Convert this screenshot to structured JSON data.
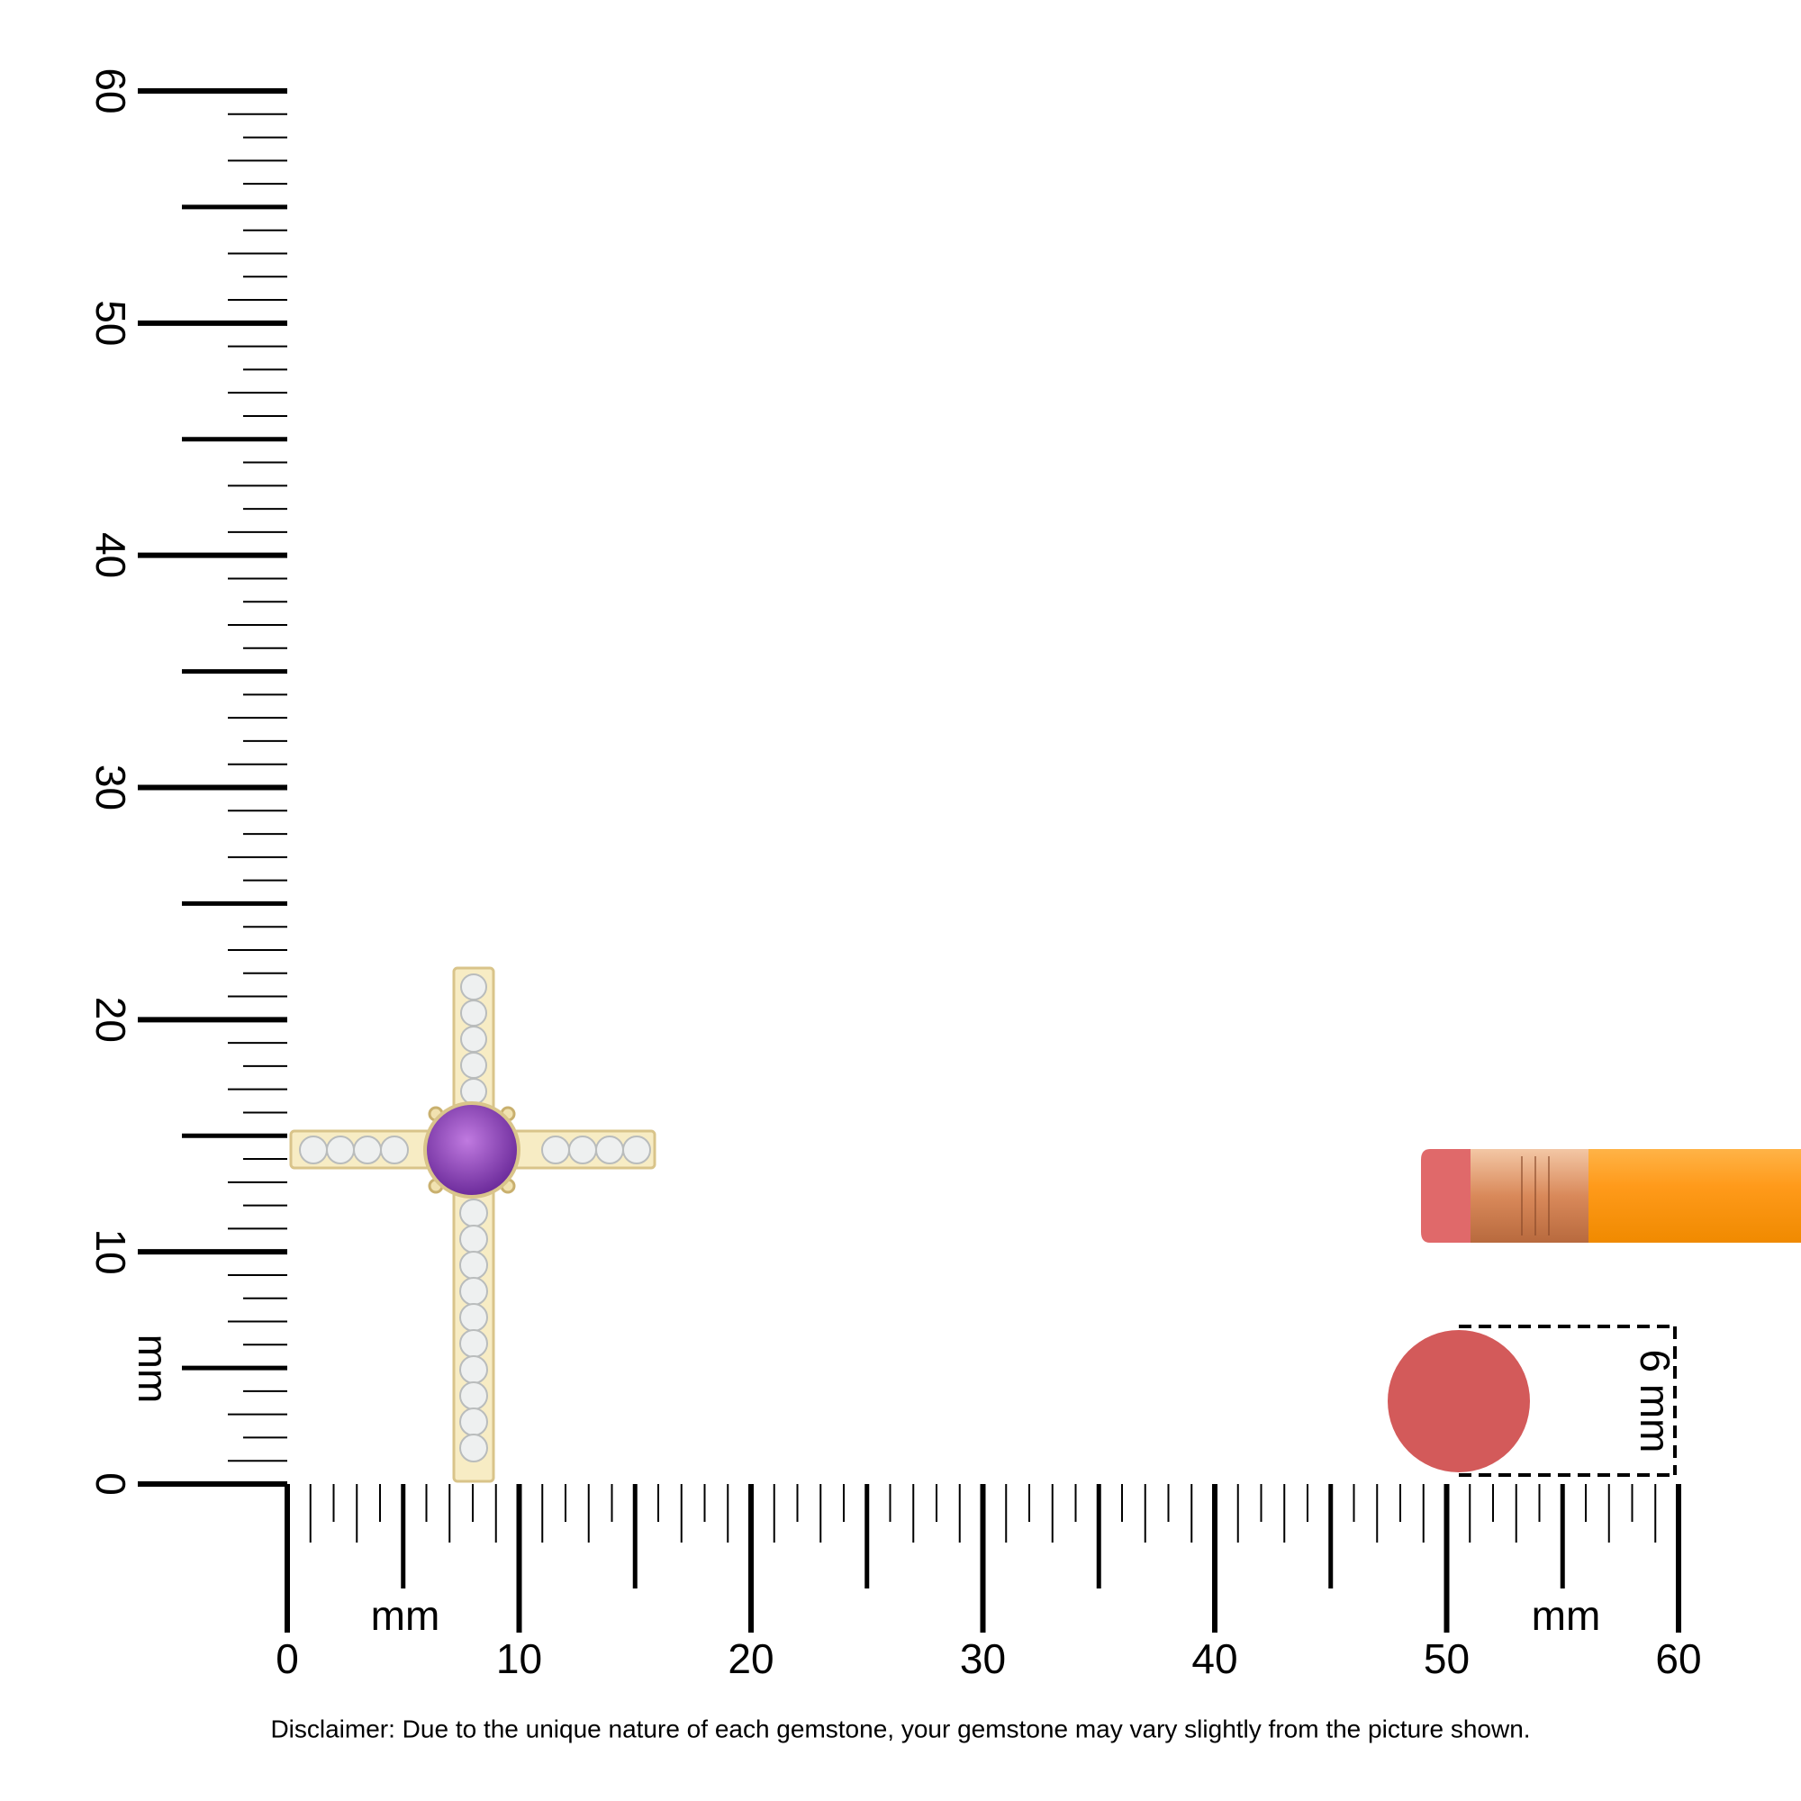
{
  "vertical_ruler": {
    "labels": [
      "0",
      "10",
      "20",
      "30",
      "40",
      "50",
      "60"
    ],
    "unit": "mm"
  },
  "horizontal_ruler": {
    "labels": [
      "0",
      "10",
      "20",
      "30",
      "40",
      "50",
      "60"
    ],
    "unit_left": "mm",
    "unit_right": "mm"
  },
  "eraser": {
    "label": "6 mm"
  },
  "disclaimer": "Disclaimer: Due to the unique nature of each gemstone, your gemstone may vary slightly from the picture shown."
}
